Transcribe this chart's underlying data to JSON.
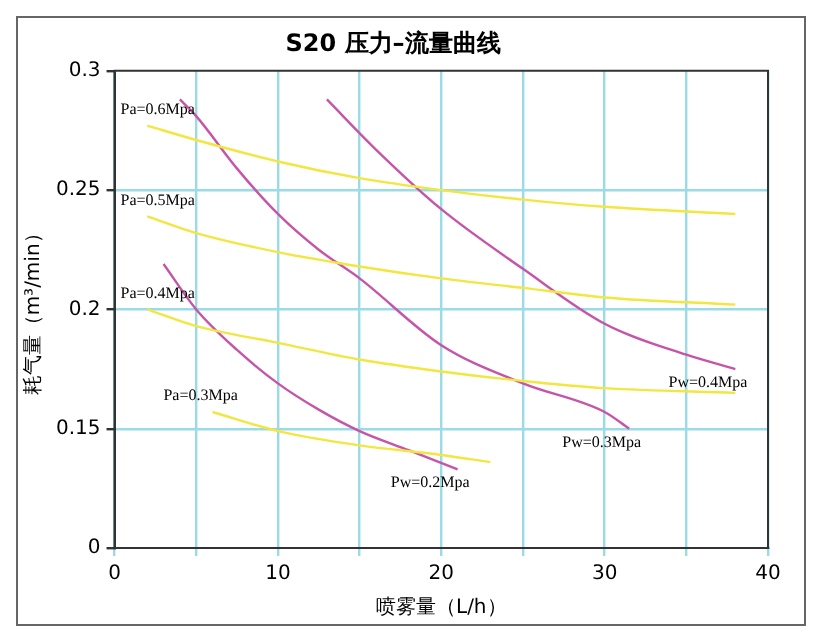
{
  "chart_data": {
    "type": "line",
    "title": "S20 压力–流量曲线",
    "xlabel": "喷雾量（L/h）",
    "ylabel": "耗气量（m³/min）",
    "xlim": [
      0,
      40
    ],
    "xticks": [
      0,
      {
        "value": 5,
        "label": null
      },
      10,
      {
        "value": 15,
        "label": null
      },
      20,
      {
        "value": 25,
        "label": null
      },
      30,
      {
        "value": 35,
        "label": null
      },
      40
    ],
    "ylim": [
      0.1,
      0.3
    ],
    "yticks": [
      {
        "value": 0.1,
        "label": "0"
      },
      0.15,
      0.2,
      0.25,
      0.3
    ],
    "grid": true,
    "legend": false,
    "marker": "none",
    "line_style": "solid",
    "series": [
      {
        "color": "#f2e640",
        "x": [
          2,
          5,
          10,
          15,
          20,
          25,
          30,
          38
        ],
        "values": [
          0.277,
          0.271,
          0.262,
          0.255,
          0.25,
          0.246,
          0.243,
          0.24
        ]
      },
      {
        "color": "#f2e640",
        "x": [
          2,
          5,
          10,
          15,
          20,
          25,
          30,
          38
        ],
        "values": [
          0.239,
          0.232,
          0.224,
          0.218,
          0.213,
          0.209,
          0.205,
          0.202
        ]
      },
      {
        "color": "#f2e640",
        "x": [
          2,
          5,
          10,
          15,
          20,
          25,
          30,
          38
        ],
        "values": [
          0.2,
          0.193,
          0.186,
          0.179,
          0.174,
          0.17,
          0.167,
          0.165
        ]
      },
      {
        "color": "#f2e640",
        "x": [
          6,
          10,
          15,
          20,
          23
        ],
        "values": [
          0.157,
          0.149,
          0.143,
          0.139,
          0.136
        ]
      },
      {
        "color": "#c455a8",
        "x": [
          3,
          5,
          7.5,
          10,
          12.5,
          15,
          18,
          21
        ],
        "values": [
          0.219,
          0.2,
          0.183,
          0.169,
          0.158,
          0.149,
          0.141,
          0.133
        ]
      },
      {
        "color": "#c455a8",
        "x": [
          4,
          5,
          7.5,
          10,
          12.5,
          15,
          20,
          25,
          30,
          31.5
        ],
        "values": [
          0.288,
          0.281,
          0.259,
          0.24,
          0.225,
          0.213,
          0.185,
          0.169,
          0.157,
          0.15
        ]
      },
      {
        "color": "#c455a8",
        "x": [
          13,
          16,
          20,
          25,
          30,
          35,
          38
        ],
        "values": [
          0.288,
          0.267,
          0.242,
          0.217,
          0.194,
          0.181,
          0.175
        ]
      }
    ],
    "annotations": [
      {
        "text": "Pa=0.6Mpa",
        "x": 2,
        "y": 0.277
      },
      {
        "text": "Pa=0.5Mpa",
        "x": 2,
        "y": 0.239
      },
      {
        "text": "Pa=0.4Mpa",
        "x": 2,
        "y": 0.2
      },
      {
        "text": "Pa=0.3Mpa",
        "x": 6,
        "y": 0.157
      },
      {
        "text": "Pw=0.2Mpa",
        "x": 21,
        "y": 0.133
      },
      {
        "text": "Pw=0.3Mpa",
        "x": 31.5,
        "y": 0.15
      },
      {
        "text": "Pw=0.4Mpa",
        "x": 38,
        "y": 0.175
      }
    ]
  }
}
